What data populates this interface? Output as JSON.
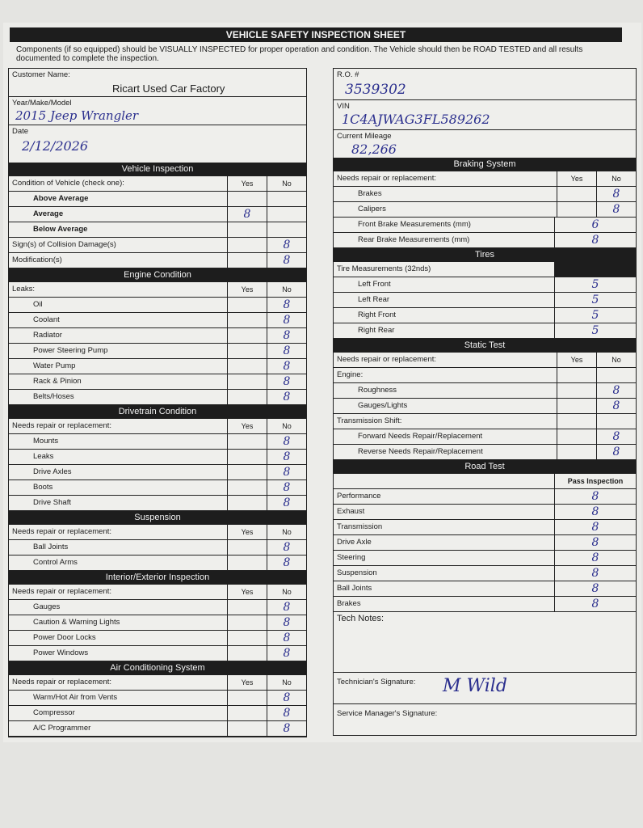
{
  "title": "VEHICLE SAFETY INSPECTION SHEET",
  "intro": "Components (if so equipped) should be VISUALLY INSPECTED for proper operation and condition. The Vehicle should then be ROAD TESTED and all results documented to complete the inspection.",
  "customer": {
    "label": "Customer Name:",
    "value": "Ricart Used Car Factory"
  },
  "ymm": {
    "label": "Year/Make/Model",
    "value": "2015 Jeep Wrangler"
  },
  "date": {
    "label": "Date",
    "value": "2/12/2026"
  },
  "ro": {
    "label": "R.O. #",
    "value": "3539302"
  },
  "vin": {
    "label": "VIN",
    "value": "1C4AJWAG3FL589262"
  },
  "mileage": {
    "label": "Current Mileage",
    "value": "82,266"
  },
  "left_sections": [
    {
      "title": "Vehicle Inspection",
      "header": "Condition of Vehicle (check one):",
      "cols": [
        "Yes",
        "No"
      ],
      "rows": [
        {
          "name": "Above Average",
          "bold": true,
          "ind": true,
          "yes": "",
          "no": ""
        },
        {
          "name": "Average",
          "bold": true,
          "ind": true,
          "yes": "8",
          "no": ""
        },
        {
          "name": "Below Average",
          "bold": true,
          "ind": true,
          "yes": "",
          "no": ""
        },
        {
          "name": "Sign(s) of Collision Damage(s)",
          "yes": "",
          "no": "8"
        },
        {
          "name": "Modification(s)",
          "yes": "",
          "no": "8"
        }
      ]
    },
    {
      "title": "Engine Condition",
      "header": "Leaks:",
      "cols": [
        "Yes",
        "No"
      ],
      "rows": [
        {
          "name": "Oil",
          "ind": true,
          "yes": "",
          "no": "8"
        },
        {
          "name": "Coolant",
          "ind": true,
          "yes": "",
          "no": "8"
        },
        {
          "name": "Radiator",
          "ind": true,
          "yes": "",
          "no": "8"
        },
        {
          "name": "Power Steering Pump",
          "ind": true,
          "yes": "",
          "no": "8"
        },
        {
          "name": "Water Pump",
          "ind": true,
          "yes": "",
          "no": "8"
        },
        {
          "name": "Rack & Pinion",
          "ind": true,
          "yes": "",
          "no": "8"
        },
        {
          "name": "Belts/Hoses",
          "ind": true,
          "yes": "",
          "no": "8"
        }
      ]
    },
    {
      "title": "Drivetrain Condition",
      "header": "Needs repair or replacement:",
      "cols": [
        "Yes",
        "No"
      ],
      "rows": [
        {
          "name": "Mounts",
          "ind": true,
          "yes": "",
          "no": "8"
        },
        {
          "name": "Leaks",
          "ind": true,
          "yes": "",
          "no": "8"
        },
        {
          "name": "Drive Axles",
          "ind": true,
          "yes": "",
          "no": "8"
        },
        {
          "name": "Boots",
          "ind": true,
          "yes": "",
          "no": "8"
        },
        {
          "name": "Drive Shaft",
          "ind": true,
          "yes": "",
          "no": "8"
        }
      ]
    },
    {
      "title": "Suspension",
      "header": "Needs repair or replacement:",
      "cols": [
        "Yes",
        "No"
      ],
      "rows": [
        {
          "name": "Ball Joints",
          "ind": true,
          "yes": "",
          "no": "8"
        },
        {
          "name": "Control Arms",
          "ind": true,
          "yes": "",
          "no": "8"
        }
      ]
    },
    {
      "title": "Interior/Exterior Inspection",
      "header": "Needs repair or replacement:",
      "cols": [
        "Yes",
        "No"
      ],
      "rows": [
        {
          "name": "Gauges",
          "ind": true,
          "yes": "",
          "no": "8"
        },
        {
          "name": "Caution & Warning Lights",
          "ind": true,
          "yes": "",
          "no": "8"
        },
        {
          "name": "Power Door Locks",
          "ind": true,
          "yes": "",
          "no": "8"
        },
        {
          "name": "Power Windows",
          "ind": true,
          "yes": "",
          "no": "8"
        }
      ]
    },
    {
      "title": "Air Conditioning System",
      "header": "Needs repair or replacement:",
      "cols": [
        "Yes",
        "No"
      ],
      "rows": [
        {
          "name": "Warm/Hot Air from Vents",
          "ind": true,
          "yes": "",
          "no": "8"
        },
        {
          "name": "Compressor",
          "ind": true,
          "yes": "",
          "no": "8"
        },
        {
          "name": "A/C Programmer",
          "ind": true,
          "yes": "",
          "no": "8"
        }
      ]
    }
  ],
  "right_sections": [
    {
      "title": "Braking System",
      "header": "Needs repair or replacement:",
      "cols": [
        "Yes",
        "No"
      ],
      "rows": [
        {
          "name": "Brakes",
          "ind": true,
          "yes": "",
          "no": "8"
        },
        {
          "name": "Calipers",
          "ind": true,
          "yes": "",
          "no": "8"
        },
        {
          "name": "Front Brake Measurements (mm)",
          "ind": true,
          "value": "6"
        },
        {
          "name": "Rear Brake Measurements (mm)",
          "ind": true,
          "value": "8"
        }
      ]
    },
    {
      "title": "Tires",
      "header": "Tire Measurements (32nds)",
      "cols": [],
      "rows": [
        {
          "name": "Left Front",
          "ind": true,
          "value": "5"
        },
        {
          "name": "Left Rear",
          "ind": true,
          "value": "5"
        },
        {
          "name": "Right Front",
          "ind": true,
          "value": "5"
        },
        {
          "name": "Right Rear",
          "ind": true,
          "value": "5"
        }
      ]
    },
    {
      "title": "Static Test",
      "header": "Needs repair or replacement:",
      "cols": [
        "Yes",
        "No"
      ],
      "rows": [
        {
          "name": "Engine:",
          "yes": "",
          "no": ""
        },
        {
          "name": "Roughness",
          "ind": true,
          "yes": "",
          "no": "8"
        },
        {
          "name": "Gauges/Lights",
          "ind": true,
          "yes": "",
          "no": "8"
        },
        {
          "name": "Transmission Shift:",
          "yes": "",
          "no": ""
        },
        {
          "name": "Forward Needs Repair/Replacement",
          "ind": true,
          "yes": "",
          "no": "8"
        },
        {
          "name": "Reverse Needs Repair/Replacement",
          "ind": true,
          "yes": "",
          "no": "8"
        }
      ]
    },
    {
      "title": "Road Test",
      "header": "",
      "cols": [
        "Pass Inspection"
      ],
      "rows": [
        {
          "name": "Performance",
          "pass": "8"
        },
        {
          "name": "Exhaust",
          "pass": "8"
        },
        {
          "name": "Transmission",
          "pass": "8"
        },
        {
          "name": "Drive Axle",
          "pass": "8"
        },
        {
          "name": "Steering",
          "pass": "8"
        },
        {
          "name": "Suspension",
          "pass": "8"
        },
        {
          "name": "Ball Joints",
          "pass": "8"
        },
        {
          "name": "Brakes",
          "pass": "8"
        }
      ]
    }
  ],
  "tech_notes": {
    "label": "Tech Notes:"
  },
  "tech_signature": {
    "label": "Technician's Signature:",
    "value": "M Wild"
  },
  "manager_signature": {
    "label": "Service Manager's Signature:"
  }
}
